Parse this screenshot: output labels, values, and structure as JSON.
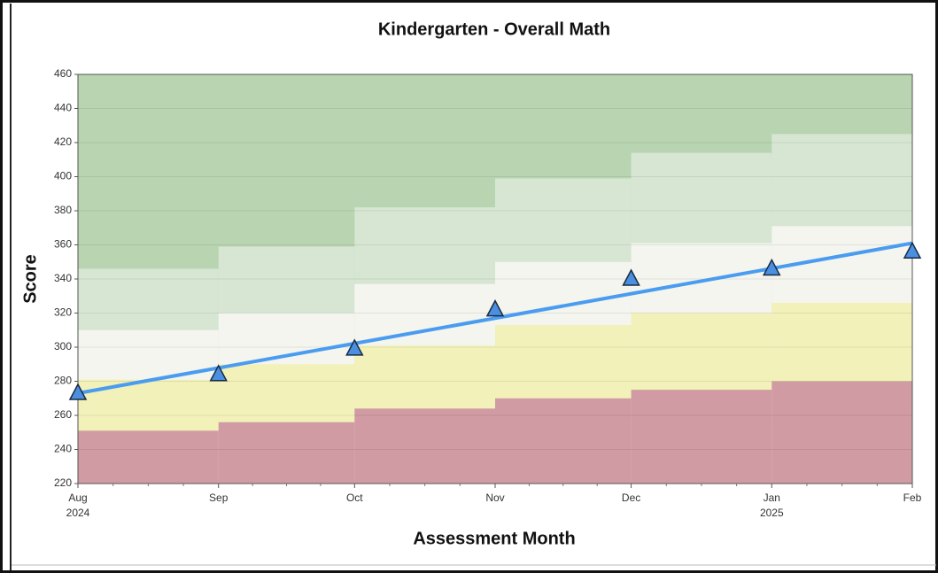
{
  "chart_data": {
    "type": "line",
    "title": "Kindergarten - Overall Math",
    "x_label": "Assessment Month",
    "y_label": "Score",
    "x": [
      "2024-08",
      "2024-09",
      "2024-10",
      "2024-11",
      "2024-12",
      "2025-01",
      "2025-02"
    ],
    "xlim": [
      "2024-08",
      "2025-02"
    ],
    "xticks": [
      {
        "value": "2024-08",
        "label": "Aug",
        "year": "2024"
      },
      {
        "value": "2024-09",
        "label": "Sep"
      },
      {
        "value": "2024-10",
        "label": "Oct"
      },
      {
        "value": "2024-11",
        "label": "Nov"
      },
      {
        "value": "2024-12",
        "label": "Dec"
      },
      {
        "value": "2025-01",
        "label": "Jan",
        "year": "2025"
      },
      {
        "value": "2025-02",
        "label": "Feb"
      }
    ],
    "ylim": [
      220,
      460
    ],
    "yticks": [
      220,
      240,
      260,
      280,
      300,
      320,
      340,
      360,
      380,
      400,
      420,
      440,
      460
    ],
    "grid": true,
    "series": [
      {
        "color": "#4a8fe0",
        "values": [
          273,
          284,
          299,
          322,
          340,
          346,
          356
        ]
      }
    ],
    "trend": {
      "color": "#4a9cf0",
      "x": [
        "2024-08",
        "2025-02"
      ],
      "values": [
        273,
        361
      ]
    },
    "bands": [
      {
        "color": "#d19ba3",
        "values": [
          251,
          256,
          264,
          270,
          275,
          280
        ]
      },
      {
        "color": "#f2f1b9",
        "values": [
          281,
          290,
          301,
          313,
          320,
          326
        ]
      },
      {
        "color": "#f4f5ee",
        "values": [
          310,
          320,
          337,
          350,
          361,
          371
        ]
      },
      {
        "color": "#d6e6d3",
        "values": [
          346,
          359,
          382,
          399,
          414,
          425
        ]
      }
    ],
    "top_band_color": "#b8d4b1"
  }
}
